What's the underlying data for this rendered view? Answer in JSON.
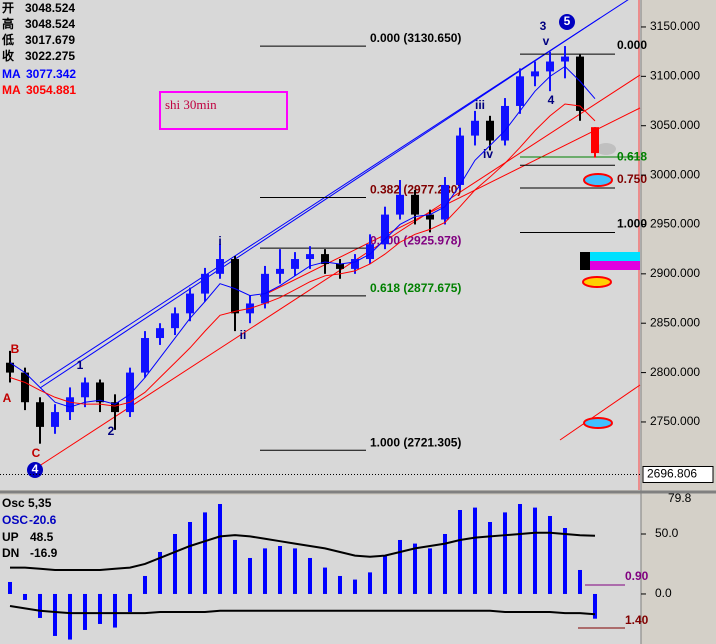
{
  "chart_data": {
    "type": "candlestick",
    "ylim": [
      2681.1,
      3177.3
    ],
    "yticks": [
      {
        "value": 3150,
        "label": "3150.000"
      },
      {
        "value": 3100,
        "label": "3100.000"
      },
      {
        "value": 3050,
        "label": "3050.000"
      },
      {
        "value": 3000,
        "label": "3000.000"
      },
      {
        "value": 2950,
        "label": "2950.000"
      },
      {
        "value": 2900,
        "label": "2900.000"
      },
      {
        "value": 2850,
        "label": "2850.000"
      },
      {
        "value": 2800,
        "label": "2800.000"
      },
      {
        "value": 2750,
        "label": "2750.000"
      }
    ],
    "up_color": "#1010ff",
    "down_color": "#000000",
    "last_color": "#ff0000",
    "candles": {
      "open": [
        2810,
        2800,
        2770,
        2745,
        2760,
        2775,
        2790,
        2770,
        2760,
        2800,
        2835,
        2845,
        2860,
        2880,
        2900,
        2915,
        2860,
        2870,
        2900,
        2905,
        2915,
        2920,
        2910,
        2905,
        2915,
        2930,
        2960,
        2980,
        2960,
        2955,
        2990,
        3040,
        3055,
        3035,
        3070,
        3100,
        3105,
        3115,
        3120,
        3048.524
      ],
      "high": [
        2822,
        2805,
        2775,
        2768,
        2785,
        2795,
        2793,
        2778,
        2805,
        2842,
        2850,
        2866,
        2886,
        2906,
        2930,
        2918,
        2878,
        2908,
        2925,
        2922,
        2928,
        2925,
        2915,
        2920,
        2940,
        2968,
        2995,
        2985,
        2965,
        2998,
        3048,
        3065,
        3060,
        3078,
        3108,
        3115,
        3125,
        3130.65,
        3122,
        3048.524
      ],
      "low": [
        2790,
        2762,
        2728,
        2738,
        2752,
        2765,
        2760,
        2742,
        2755,
        2795,
        2828,
        2838,
        2852,
        2872,
        2895,
        2842,
        2850,
        2865,
        2890,
        2898,
        2905,
        2900,
        2895,
        2900,
        2910,
        2925,
        2955,
        2950,
        2942,
        2950,
        2985,
        3030,
        3025,
        3030,
        3062,
        3090,
        3085,
        3098,
        3055,
        3017.679
      ],
      "close": [
        2800,
        2770,
        2745,
        2760,
        2775,
        2790,
        2770,
        2760,
        2800,
        2835,
        2845,
        2860,
        2880,
        2900,
        2915,
        2860,
        2870,
        2900,
        2905,
        2915,
        2920,
        2910,
        2905,
        2915,
        2930,
        2960,
        2980,
        2960,
        2955,
        2990,
        3040,
        3055,
        3035,
        3070,
        3100,
        3105,
        3115,
        3120,
        3065,
        3022.275
      ]
    },
    "ohlc_labels": [
      "开",
      "高",
      "低",
      "收"
    ],
    "ma": [
      {
        "name": "MA",
        "color": "#0000ff",
        "values": [
          2810,
          2800,
          2785,
          2770,
          2765,
          2770,
          2772,
          2768,
          2778,
          2795,
          2815,
          2835,
          2855,
          2872,
          2890,
          2885,
          2878,
          2880,
          2888,
          2898,
          2908,
          2912,
          2910,
          2912,
          2920,
          2935,
          2950,
          2958,
          2960,
          2968,
          2990,
          3015,
          3030,
          3045,
          3065,
          3085,
          3100,
          3110,
          3095,
          3077.342
        ]
      },
      {
        "name": "MA",
        "color": "#ff0000",
        "values": [
          2795,
          2790,
          2782,
          2775,
          2770,
          2768,
          2768,
          2766,
          2770,
          2780,
          2795,
          2810,
          2825,
          2842,
          2858,
          2862,
          2865,
          2870,
          2876,
          2884,
          2892,
          2898,
          2900,
          2903,
          2910,
          2920,
          2932,
          2940,
          2945,
          2952,
          2968,
          2985,
          2998,
          3012,
          3028,
          3045,
          3060,
          3072,
          3070,
          3054.881
        ]
      }
    ],
    "fib_left": [
      {
        "value": 3130.65,
        "label": "0.000 (3130.650)",
        "color": "#000000"
      },
      {
        "value": 2977.28,
        "label": "0.382 (2977.280)",
        "color": "#800000"
      },
      {
        "value": 2925.978,
        "label": "0.500 (2925.978)",
        "color": "#800080"
      },
      {
        "value": 2877.675,
        "label": "0.618 (2877.675)",
        "color": "#008000"
      },
      {
        "value": 2721.305,
        "label": "1.000 (2721.305)",
        "color": "#000000"
      }
    ],
    "fib_right": [
      {
        "value": 3130.65,
        "label": "0.000",
        "color": "#000000"
      },
      {
        "value": 3018,
        "label": "0.618",
        "color": "#008000"
      },
      {
        "value": 2995,
        "label": "0.750",
        "color": "#800000"
      },
      {
        "value": 2950,
        "label": "1.000",
        "color": "#000000"
      }
    ],
    "cursor_price": 2696.806,
    "annotation_box": "shi 30min",
    "wave_labels": [
      "3",
      "5",
      "v",
      "4",
      "iii",
      "iv",
      "i",
      "ii",
      "1",
      "2",
      "A",
      "B",
      "C",
      "4"
    ],
    "osc": {
      "title": "Osc 5,35",
      "name": "OSC",
      "color": "#0000ff",
      "ylim": [
        -41.7,
        82.5
      ],
      "yticks": [
        {
          "value": 50,
          "label": "50.0"
        },
        {
          "value": 0,
          "label": "0.0"
        }
      ],
      "values": [
        10,
        -5,
        -20,
        -35,
        -38,
        -30,
        -25,
        -28,
        -15,
        15,
        35,
        50,
        60,
        68,
        75,
        45,
        30,
        38,
        40,
        38,
        30,
        22,
        15,
        12,
        18,
        32,
        45,
        42,
        38,
        50,
        70,
        72,
        60,
        68,
        75,
        72,
        65,
        55,
        20,
        -20.6
      ],
      "lines": [
        {
          "name": "UP",
          "values": [
            22,
            22,
            21,
            20,
            20,
            20,
            20,
            21,
            22,
            25,
            30,
            35,
            40,
            44,
            48,
            49,
            48,
            46,
            44,
            42,
            40,
            38,
            35,
            32,
            31,
            32,
            35,
            38,
            40,
            42,
            45,
            47,
            48,
            49,
            50,
            51,
            51,
            50,
            49,
            48.5
          ]
        },
        {
          "name": "DN",
          "values": [
            -10,
            -12,
            -14,
            -15,
            -16,
            -16,
            -16,
            -16,
            -16,
            -16,
            -15,
            -15,
            -15,
            -15,
            -14,
            -14,
            -14,
            -14,
            -14,
            -14,
            -14,
            -14,
            -14,
            -14,
            -14,
            -14,
            -14,
            -14,
            -14,
            -14,
            -14,
            -14,
            -14,
            -15,
            -15,
            -15,
            -15,
            -16,
            -16,
            -16.9
          ]
        }
      ],
      "side_labels": [
        "79.8",
        "0.90",
        "1.40"
      ]
    }
  }
}
